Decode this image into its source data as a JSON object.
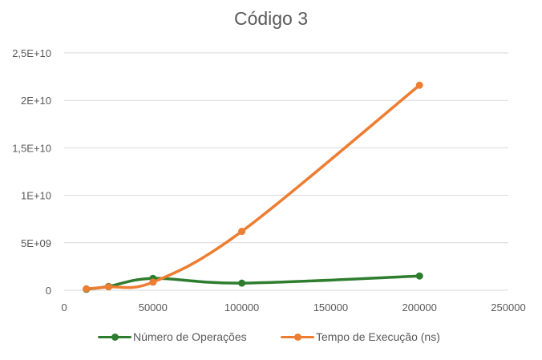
{
  "chart_data": {
    "type": "scatter",
    "title": "Código 3",
    "xlabel": "",
    "ylabel": "",
    "xlim": [
      0,
      250000
    ],
    "ylim": [
      0,
      25000000000
    ],
    "x_ticks": [
      {
        "value": 0,
        "label": "0"
      },
      {
        "value": 50000,
        "label": "50000"
      },
      {
        "value": 100000,
        "label": "100000"
      },
      {
        "value": 150000,
        "label": "150000"
      },
      {
        "value": 200000,
        "label": "200000"
      },
      {
        "value": 250000,
        "label": "250000"
      }
    ],
    "y_ticks": [
      {
        "value": 0,
        "label": "0"
      },
      {
        "value": 5000000000,
        "label": "5E+09"
      },
      {
        "value": 10000000000,
        "label": "1E+10"
      },
      {
        "value": 15000000000,
        "label": "1,5E+10"
      },
      {
        "value": 20000000000,
        "label": "2E+10"
      },
      {
        "value": 25000000000,
        "label": "2,5E+10"
      }
    ],
    "grid": true,
    "legend_position": "bottom",
    "series": [
      {
        "name": "Número de Operações",
        "color": "#2e7d2e",
        "smooth": true,
        "x": [
          12500,
          25000,
          50000,
          100000,
          200000
        ],
        "y": [
          100000000,
          400000000,
          1250000000,
          750000000,
          1500000000
        ]
      },
      {
        "name": "Tempo de Execução (ns)",
        "color": "#ed7d31",
        "smooth": true,
        "x": [
          12500,
          25000,
          50000,
          100000,
          200000
        ],
        "y": [
          150000000,
          350000000,
          850000000,
          6200000000,
          21600000000
        ]
      }
    ]
  }
}
